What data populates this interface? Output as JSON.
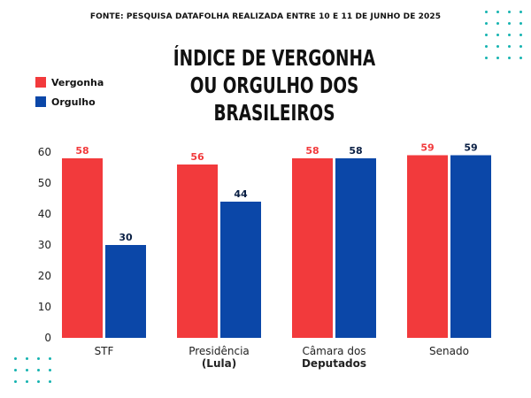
{
  "source_note": "FONTE: PESQUISA DATAFOLHA REALIZADA ENTRE 10 E 11 DE JUNHO DE 2025",
  "title_lines": [
    "ÍNDICE DE VERGONHA",
    "OU ORGULHO DOS",
    "BRASILEIROS"
  ],
  "colors": {
    "vergonha": "#f23a3c",
    "orgulho": "#0b47a8",
    "dots": "#16b3b0"
  },
  "chart_data": {
    "type": "bar",
    "title": "ÍNDICE DE VERGONHA OU ORGULHO DOS BRASILEIROS",
    "categories": [
      {
        "line1": "STF",
        "line2": ""
      },
      {
        "line1": "Presidência",
        "line2": "(Lula)"
      },
      {
        "line1": "Câmara dos",
        "line2": "Deputados"
      },
      {
        "line1": "Senado",
        "line2": ""
      }
    ],
    "series": [
      {
        "name": "Vergonha",
        "values": [
          58,
          56,
          58,
          59
        ]
      },
      {
        "name": "Orgulho",
        "values": [
          30,
          44,
          58,
          59
        ]
      }
    ],
    "ylim": [
      0,
      60
    ],
    "yticks": [
      0,
      10,
      20,
      30,
      40,
      50,
      60
    ],
    "legend_position": "top-left",
    "grid": false
  }
}
